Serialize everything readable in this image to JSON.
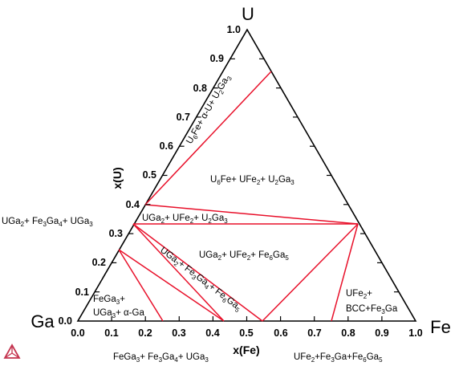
{
  "vertices": {
    "top": "U",
    "left": "Ga",
    "right": "Fe"
  },
  "axes": {
    "bottom_title": "x(Fe)",
    "left_title": "x(U)",
    "bottom_ticks": [
      "0.0",
      "0.1",
      "0.2",
      "0.3",
      "0.4",
      "0.5",
      "0.6",
      "0.7",
      "0.8",
      "0.9",
      "1.0"
    ],
    "left_ticks": [
      "0.0",
      "0.1",
      "0.2",
      "0.3",
      "0.4",
      "0.5",
      "0.6",
      "0.7",
      "0.8",
      "0.9",
      "1.0"
    ]
  },
  "regions": {
    "r1": {
      "a": "U",
      "a_sub": "6",
      "b": "Fe+ α-U+ U",
      "b_sub": "2",
      "c": "Ga",
      "c_sub": "3"
    },
    "r2": {
      "a": "U",
      "a_sub": "6",
      "b": "Fe+ UFe",
      "b_sub": "2",
      "c": "+ U",
      "c_sub": "2",
      "d": "Ga",
      "d_sub": "3"
    },
    "r3": {
      "a": "UGa",
      "a_sub": "2",
      "b": "+ UFe",
      "b_sub": "2",
      "c": "+ U",
      "c_sub": "2",
      "d": "Ga",
      "d_sub": "3"
    },
    "r4": {
      "a": "UGa",
      "a_sub": "2",
      "b": "+ UFe",
      "b_sub": "2",
      "c": "+ Fe",
      "c_sub": "6",
      "d": "Ga",
      "d_sub": "5"
    },
    "r5": {
      "a": "UGa",
      "a_sub": "2",
      "b": "+ Fe",
      "b_sub": "3",
      "c": "Ga",
      "c_sub": "4",
      "d": "+ Fe",
      "d_sub": "6",
      "e": "Ga",
      "e_sub": "5"
    },
    "r6": {
      "line1a": "FeGa",
      "line1a_sub": "3",
      "line1b": "+",
      "line2a": "UGa",
      "line2a_sub": "3",
      "line2b": "+ α-Ga"
    },
    "r7": {
      "line1a": "UFe",
      "line1a_sub": "2",
      "line1b": "+",
      "line2": "BCC+Fe",
      "line2_sub": "3",
      "line2b": "Ga"
    }
  },
  "outer_labels": {
    "left": {
      "a": "UGa",
      "a_sub": "2",
      "b": "+ Fe",
      "b_sub": "3",
      "c": "Ga",
      "c_sub": "4",
      "d": "+ UGa",
      "d_sub": "3"
    },
    "bottom_left": {
      "a": "FeGa",
      "a_sub": "3",
      "b": "+ Fe",
      "b_sub": "3",
      "c": "Ga",
      "c_sub": "4",
      "d": "+ UGa",
      "d_sub": "3"
    },
    "bottom_right": {
      "a": "UFe",
      "a_sub": "2",
      "b": "+Fe",
      "b_sub": "3",
      "c": "Ga+Fe",
      "c_sub": "6",
      "d": "Ga",
      "d_sub": "5"
    }
  },
  "colors": {
    "tie_line": "#e8102a",
    "axis": "#000000",
    "logo": "#c4344f"
  },
  "logo_icon": "thermo-calc-triangle-icon"
}
